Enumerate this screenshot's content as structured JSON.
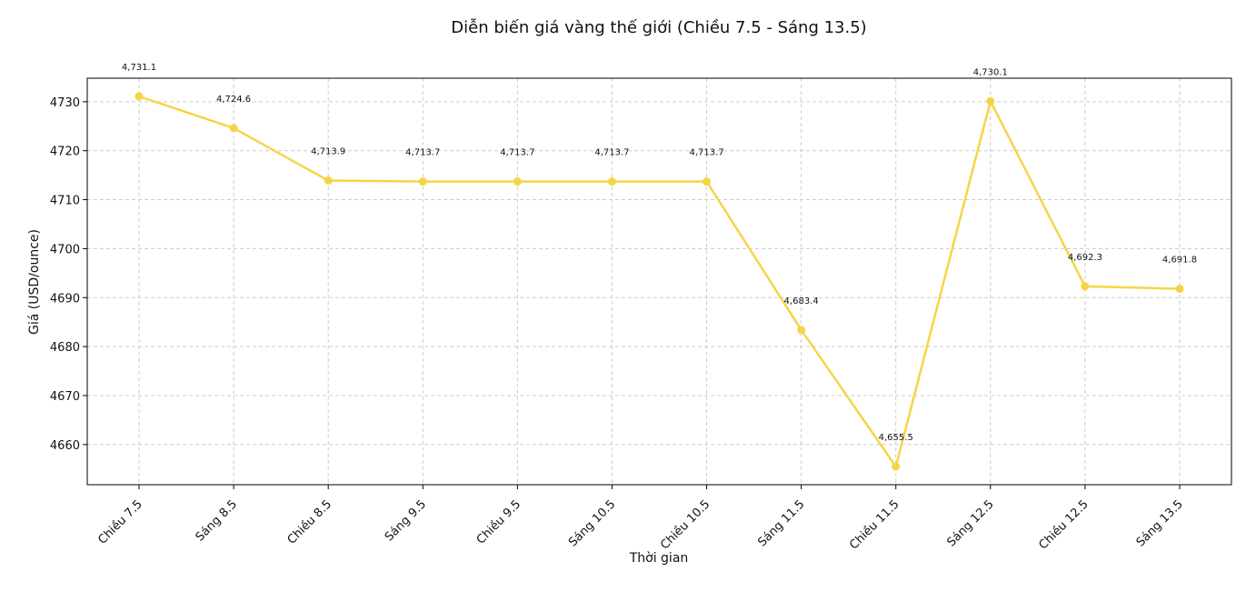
{
  "chart_data": {
    "type": "line",
    "title": "Diễn biến giá vàng thế giới (Chiều 7.5 - Sáng 13.5)",
    "xlabel": "Thời gian",
    "ylabel": "Giá (USD/ounce)",
    "categories": [
      "Chiều 7.5",
      "Sáng 8.5",
      "Chiều 8.5",
      "Sáng 9.5",
      "Chiều 9.5",
      "Sáng 10.5",
      "Chiều 10.5",
      "Sáng 11.5",
      "Chiều 11.5",
      "Sáng 12.5",
      "Chiều 12.5",
      "Sáng 13.5"
    ],
    "series": [
      {
        "values": [
          4731.1,
          4724.6,
          4713.9,
          4713.7,
          4713.7,
          4713.7,
          4713.7,
          4683.4,
          4655.5,
          4730.1,
          4692.3,
          4691.8
        ],
        "labels": [
          "4,731.1",
          "4,724.6",
          "4,713.9",
          "4,713.7",
          "4,713.7",
          "4,713.7",
          "4,713.7",
          "4,683.4",
          "4,655.5",
          "4,730.1",
          "4,692.3",
          "4,691.8"
        ],
        "color": "#f5d547"
      }
    ],
    "yticks": [
      4660,
      4670,
      4680,
      4690,
      4700,
      4710,
      4720,
      4730
    ],
    "ylim": [
      4651.8,
      4734.8
    ],
    "grid": true
  }
}
